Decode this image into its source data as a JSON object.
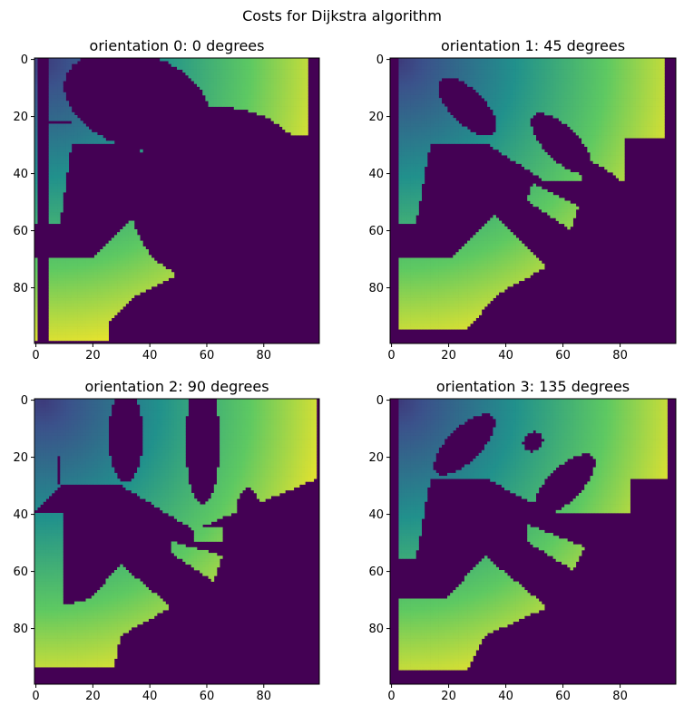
{
  "figure": {
    "suptitle": "Costs for Dijkstra algorithm"
  },
  "colors": {
    "obstacle": "#440154",
    "colormap": "viridis",
    "colormap_stops": [
      "#440154",
      "#3b528b",
      "#21918c",
      "#5ec962",
      "#fde725"
    ],
    "axis": "#000000"
  },
  "chart_data": [
    {
      "type": "heatmap",
      "title": "orientation 0: 0 degrees",
      "orientation_index": 0,
      "degrees": 0,
      "grid_size": [
        100,
        100
      ],
      "xlim": [
        0,
        99
      ],
      "ylim": [
        99,
        0
      ],
      "x_ticks": [
        0,
        20,
        40,
        60,
        80
      ],
      "y_ticks": [
        0,
        20,
        40,
        60,
        80
      ],
      "free_space": {
        "polygons": [
          [
            [
              0,
              0
            ],
            [
              96,
              0
            ],
            [
              96,
              28
            ],
            [
              82,
              28
            ],
            [
              82,
              43
            ],
            [
              48,
              43
            ],
            [
              35,
              30
            ],
            [
              13,
              30
            ],
            [
              9,
              58
            ],
            [
              0,
              58
            ]
          ],
          [
            [
              36,
              55
            ],
            [
              56,
              73
            ],
            [
              36,
              83
            ],
            [
              26,
              93
            ],
            [
              26,
              99
            ],
            [
              0,
              99
            ],
            [
              0,
              70
            ],
            [
              20,
              70
            ]
          ]
        ],
        "blobs": [
          [
            [
              48,
              44
            ],
            [
              70,
              52
            ],
            [
              66,
              61
            ],
            [
              48,
              51
            ]
          ]
        ]
      },
      "obstacles": {
        "rects": [
          [
            1,
            0,
            4,
            100
          ],
          [
            82,
            27,
            15,
            4
          ],
          [
            4,
            22,
            9,
            1
          ]
        ],
        "ellipses": [
          [
            71,
            33,
            48,
            30,
            15
          ],
          [
            36,
            15,
            53,
            33,
            18
          ],
          [
            61,
            48,
            55,
            60,
            8
          ]
        ],
        "polygons": []
      },
      "cost_origin": [
        3,
        1
      ],
      "cost_range": [
        0,
        100
      ]
    },
    {
      "type": "heatmap",
      "title": "orientation 1: 45 degrees",
      "orientation_index": 1,
      "degrees": 45,
      "grid_size": [
        100,
        100
      ],
      "xlim": [
        0,
        99
      ],
      "ylim": [
        99,
        0
      ],
      "x_ticks": [
        0,
        20,
        40,
        60,
        80
      ],
      "y_ticks": [
        0,
        20,
        40,
        60,
        80
      ],
      "free_space": {
        "polygons": [
          [
            [
              0,
              0
            ],
            [
              96,
              0
            ],
            [
              96,
              28
            ],
            [
              82,
              28
            ],
            [
              82,
              43
            ],
            [
              54,
              43
            ],
            [
              34,
              30
            ],
            [
              14,
              30
            ],
            [
              9,
              58
            ],
            [
              0,
              58
            ]
          ],
          [
            [
              37,
              55
            ],
            [
              55,
              73
            ],
            [
              37,
              83
            ],
            [
              27,
              95
            ],
            [
              0,
              95
            ],
            [
              0,
              70
            ],
            [
              22,
              70
            ]
          ]
        ],
        "blobs": [
          [
            [
              50,
              44
            ],
            [
              66,
              52
            ],
            [
              63,
              60
            ],
            [
              48,
              50
            ]
          ]
        ]
      },
      "obstacles": {
        "rects": [
          [
            0,
            0,
            3,
            100
          ],
          [
            0,
            96,
            100,
            4
          ],
          [
            96,
            0,
            4,
            100
          ]
        ],
        "ellipses": [
          [
            27,
            17,
            12,
            26,
            -45
          ],
          [
            60,
            30,
            12,
            28,
            -45
          ],
          [
            75,
            45,
            10,
            20,
            -45
          ]
        ],
        "polygons": []
      },
      "cost_origin": [
        3,
        1
      ],
      "cost_range": [
        0,
        100
      ]
    },
    {
      "type": "heatmap",
      "title": "orientation 2: 90 degrees",
      "orientation_index": 2,
      "degrees": 90,
      "grid_size": [
        100,
        100
      ],
      "xlim": [
        0,
        99
      ],
      "ylim": [
        99,
        0
      ],
      "x_ticks": [
        0,
        20,
        40,
        60,
        80
      ],
      "y_ticks": [
        0,
        20,
        40,
        60,
        80
      ],
      "free_space": {
        "polygons": [
          [
            [
              0,
              0
            ],
            [
              99,
              0
            ],
            [
              99,
              28
            ],
            [
              70,
              40
            ],
            [
              56,
              46
            ],
            [
              30,
              30
            ],
            [
              10,
              30
            ],
            [
              0,
              40
            ]
          ],
          [
            [
              0,
              40
            ],
            [
              10,
              40
            ],
            [
              10,
              75
            ],
            [
              0,
              75
            ]
          ],
          [
            [
              30,
              58
            ],
            [
              48,
              73
            ],
            [
              30,
              83
            ],
            [
              28,
              94
            ],
            [
              0,
              94
            ],
            [
              0,
              75
            ],
            [
              20,
              70
            ]
          ]
        ],
        "blobs": [
          [
            [
              48,
              50
            ],
            [
              66,
              55
            ],
            [
              63,
              64
            ],
            [
              48,
              54
            ]
          ],
          [
            [
              56,
              45
            ],
            [
              66,
              45
            ],
            [
              66,
              50
            ],
            [
              56,
              50
            ]
          ]
        ]
      },
      "obstacles": {
        "rects": [
          [
            8,
            20,
            1,
            10
          ]
        ],
        "ellipses": [
          [
            32,
            13,
            12,
            33,
            0
          ],
          [
            59,
            15,
            12,
            44,
            0
          ],
          [
            75,
            38,
            8,
            14,
            0
          ]
        ],
        "polygons": []
      },
      "cost_origin": [
        3,
        1
      ],
      "cost_range": [
        0,
        100
      ]
    },
    {
      "type": "heatmap",
      "title": "orientation 3: 135 degrees",
      "orientation_index": 3,
      "degrees": 135,
      "grid_size": [
        100,
        100
      ],
      "xlim": [
        0,
        99
      ],
      "ylim": [
        99,
        0
      ],
      "x_ticks": [
        0,
        20,
        40,
        60,
        80
      ],
      "y_ticks": [
        0,
        20,
        40,
        60,
        80
      ],
      "free_space": {
        "polygons": [
          [
            [
              0,
              0
            ],
            [
              97,
              0
            ],
            [
              97,
              28
            ],
            [
              84,
              28
            ],
            [
              84,
              40
            ],
            [
              56,
              40
            ],
            [
              34,
              28
            ],
            [
              14,
              28
            ],
            [
              9,
              56
            ],
            [
              0,
              56
            ]
          ],
          [
            [
              33,
              55
            ],
            [
              55,
              73
            ],
            [
              33,
              83
            ],
            [
              27,
              95
            ],
            [
              0,
              95
            ],
            [
              0,
              70
            ],
            [
              20,
              70
            ]
          ]
        ],
        "blobs": [
          [
            [
              48,
              44
            ],
            [
              68,
              52
            ],
            [
              64,
              60
            ],
            [
              48,
              50
            ]
          ]
        ]
      },
      "obstacles": {
        "rects": [
          [
            0,
            0,
            3,
            100
          ],
          [
            0,
            96,
            100,
            4
          ],
          [
            97,
            0,
            3,
            100
          ]
        ],
        "ellipses": [
          [
            26,
            16,
            12,
            28,
            45
          ],
          [
            61,
            30,
            12,
            28,
            45
          ],
          [
            50,
            15,
            6,
            8,
            45
          ]
        ],
        "polygons": []
      },
      "cost_origin": [
        3,
        1
      ],
      "cost_range": [
        0,
        100
      ]
    }
  ]
}
